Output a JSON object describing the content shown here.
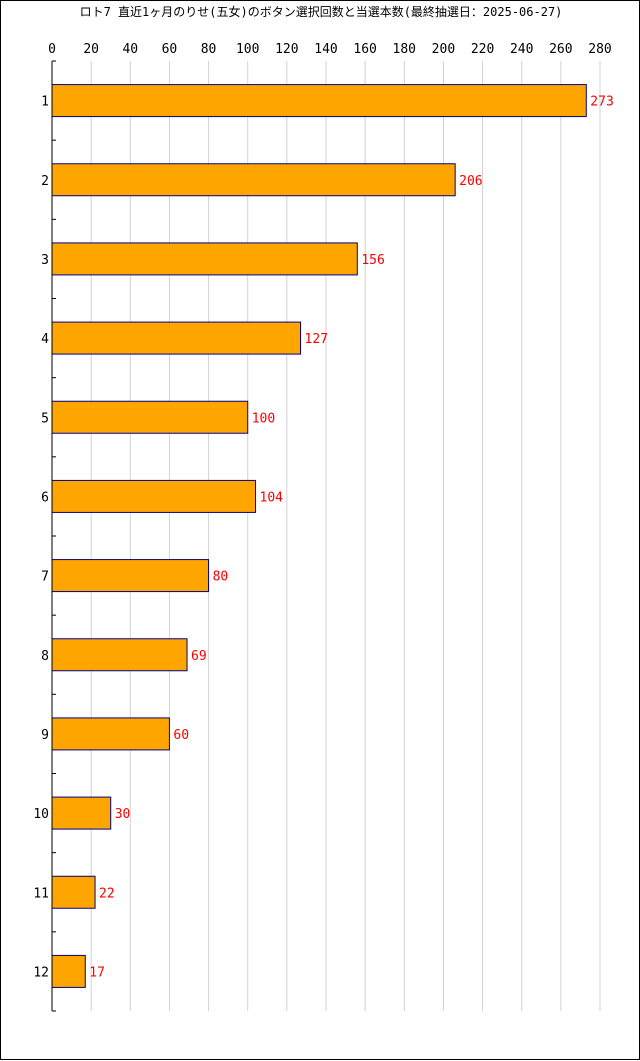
{
  "chart_data": {
    "type": "bar",
    "orientation": "horizontal",
    "title": "ロト7 直近1ヶ月のりせ(五女)のボタン選択回数と当選本数(最終抽選日：2025-06-27)",
    "categories": [
      "1",
      "2",
      "3",
      "4",
      "5",
      "6",
      "7",
      "8",
      "9",
      "10",
      "11",
      "12"
    ],
    "values": [
      273,
      206,
      156,
      127,
      100,
      104,
      80,
      69,
      60,
      30,
      22,
      17
    ],
    "xlim": [
      0,
      280
    ],
    "xticks": [
      0,
      20,
      40,
      60,
      80,
      100,
      120,
      140,
      160,
      180,
      200,
      220,
      240,
      260,
      280
    ],
    "xaxis_position": "top",
    "grid": "vertical",
    "legend": "none",
    "bar_color": "#FFA500",
    "bar_edge_color": "#00008B",
    "label_color": "#FF0000",
    "grid_color": "#D3D3D3"
  }
}
